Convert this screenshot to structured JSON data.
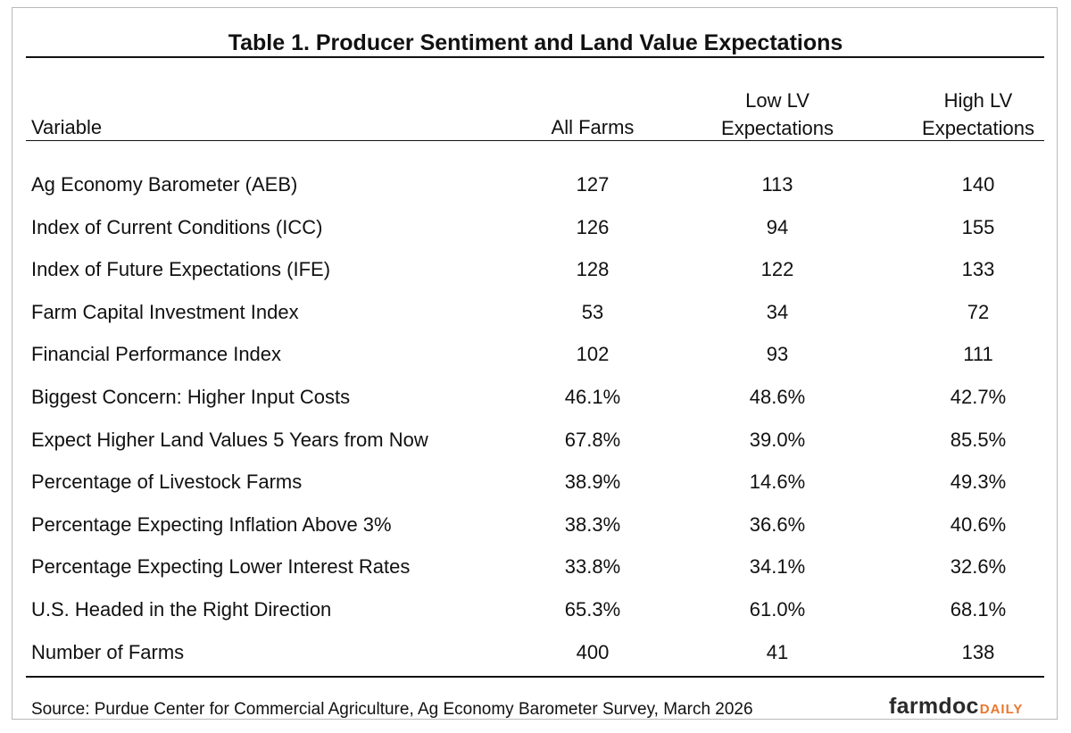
{
  "title": "Table 1.  Producer Sentiment and Land Value Expectations",
  "columns": {
    "variable": "Variable",
    "all_farms": "All Farms",
    "low_lv_line1": "Low LV",
    "low_lv_line2": "Expectations",
    "high_lv_line1": "High LV",
    "high_lv_line2": "Expectations"
  },
  "rows": [
    {
      "label": "Ag Economy Barometer (AEB)",
      "all": "127",
      "low": "113",
      "high": "140"
    },
    {
      "label": "Index of Current Conditions (ICC)",
      "all": "126",
      "low": "94",
      "high": "155"
    },
    {
      "label": "Index of Future Expectations (IFE)",
      "all": "128",
      "low": "122",
      "high": "133"
    },
    {
      "label": "Farm Capital Investment Index",
      "all": "53",
      "low": "34",
      "high": "72"
    },
    {
      "label": "Financial Performance Index",
      "all": "102",
      "low": "93",
      "high": "111"
    },
    {
      "label": "Biggest Concern: Higher Input Costs",
      "all": "46.1%",
      "low": "48.6%",
      "high": "42.7%"
    },
    {
      "label": "Expect Higher Land Values 5 Years from Now",
      "all": "67.8%",
      "low": "39.0%",
      "high": "85.5%"
    },
    {
      "label": "Percentage of Livestock Farms",
      "all": "38.9%",
      "low": "14.6%",
      "high": "49.3%"
    },
    {
      "label": "Percentage Expecting Inflation Above 3%",
      "all": "38.3%",
      "low": "36.6%",
      "high": "40.6%"
    },
    {
      "label": "Percentage Expecting Lower Interest Rates",
      "all": "33.8%",
      "low": "34.1%",
      "high": "32.6%"
    },
    {
      "label": "U.S. Headed in the Right Direction",
      "all": "65.3%",
      "low": "61.0%",
      "high": "68.1%"
    },
    {
      "label": "Number of Farms",
      "all": "400",
      "low": "41",
      "high": "138"
    }
  ],
  "source": "Source:  Purdue Center for Commercial Agriculture, Ag Economy Barometer Survey, March 2026",
  "logo": {
    "word": "farmdoc",
    "suffix": "DAILY",
    "colors": {
      "word": "#2b2b2b",
      "suffix": "#e8772e"
    }
  }
}
